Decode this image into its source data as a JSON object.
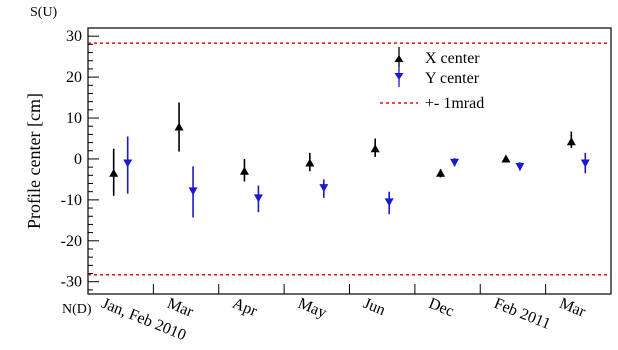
{
  "chart_data": {
    "type": "scatter",
    "title": "",
    "ylabel": "Profile center [cm]",
    "xlabel": "",
    "y_axis_corner_label": "S(U)",
    "x_axis_corner_label": "N(D)",
    "ylim": [
      -33,
      32
    ],
    "yticks": [
      -30,
      -20,
      -10,
      0,
      10,
      20,
      30
    ],
    "grid": false,
    "legend_placement": "top-right",
    "categories": [
      "Jan, Feb 2010",
      "Mar",
      "Apr",
      "May",
      "Jun",
      "Dec",
      "Feb 2011",
      "Mar"
    ],
    "series": [
      {
        "name": "X center",
        "color": "#000000",
        "marker": "triangle-up",
        "values": [
          -3.5,
          7.8,
          -3.0,
          -1.0,
          2.5,
          -3.5,
          0.0,
          4.2
        ],
        "err_low": [
          5.5,
          6.0,
          2.5,
          2.0,
          2.0,
          1.0,
          0.5,
          1.5
        ],
        "err_high": [
          6.0,
          6.0,
          3.0,
          2.5,
          2.5,
          1.0,
          0.5,
          2.5
        ]
      },
      {
        "name": "Y center",
        "color": "#1a1acc",
        "marker": "triangle-down",
        "values": [
          -1.0,
          -7.8,
          -9.5,
          -7.0,
          -10.5,
          -0.8,
          -1.8,
          -1.0
        ],
        "err_low": [
          7.5,
          6.5,
          3.5,
          2.5,
          3.0,
          1.0,
          1.0,
          2.5
        ],
        "err_high": [
          6.5,
          6.0,
          3.0,
          2.0,
          2.5,
          1.0,
          1.0,
          2.5
        ]
      }
    ],
    "reference_lines": [
      {
        "name": "+- 1mrad",
        "values": [
          28.3,
          -28.3
        ],
        "color": "#e01010",
        "style": "dashed"
      }
    ]
  }
}
